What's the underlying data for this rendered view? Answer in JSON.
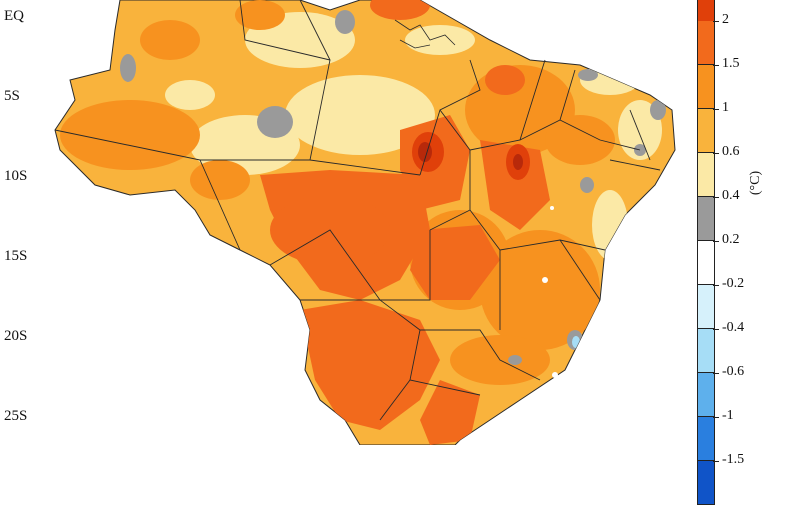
{
  "latitude_labels": [
    "EQ",
    "5S",
    "10S",
    "15S",
    "20S",
    "25S"
  ],
  "legend": {
    "unit": "(°C)",
    "ticks": [
      "2",
      "1.5",
      "1",
      "0.6",
      "0.4",
      "0.2",
      "-0.2",
      "-0.4",
      "-0.6",
      "-1",
      "-1.5"
    ],
    "colors": [
      "#e0400a",
      "#f26a1c",
      "#f7921f",
      "#f9b33c",
      "#fbe9a6",
      "#9a9a9a",
      "#ffffff",
      "#d6f1fb",
      "#a6ddf6",
      "#5eb0ec",
      "#2a7fdf",
      "#1054c8"
    ]
  },
  "colors": {
    "background": "#ffffff",
    "border": "#2a2a2a",
    "ocean": "#ffffff"
  }
}
